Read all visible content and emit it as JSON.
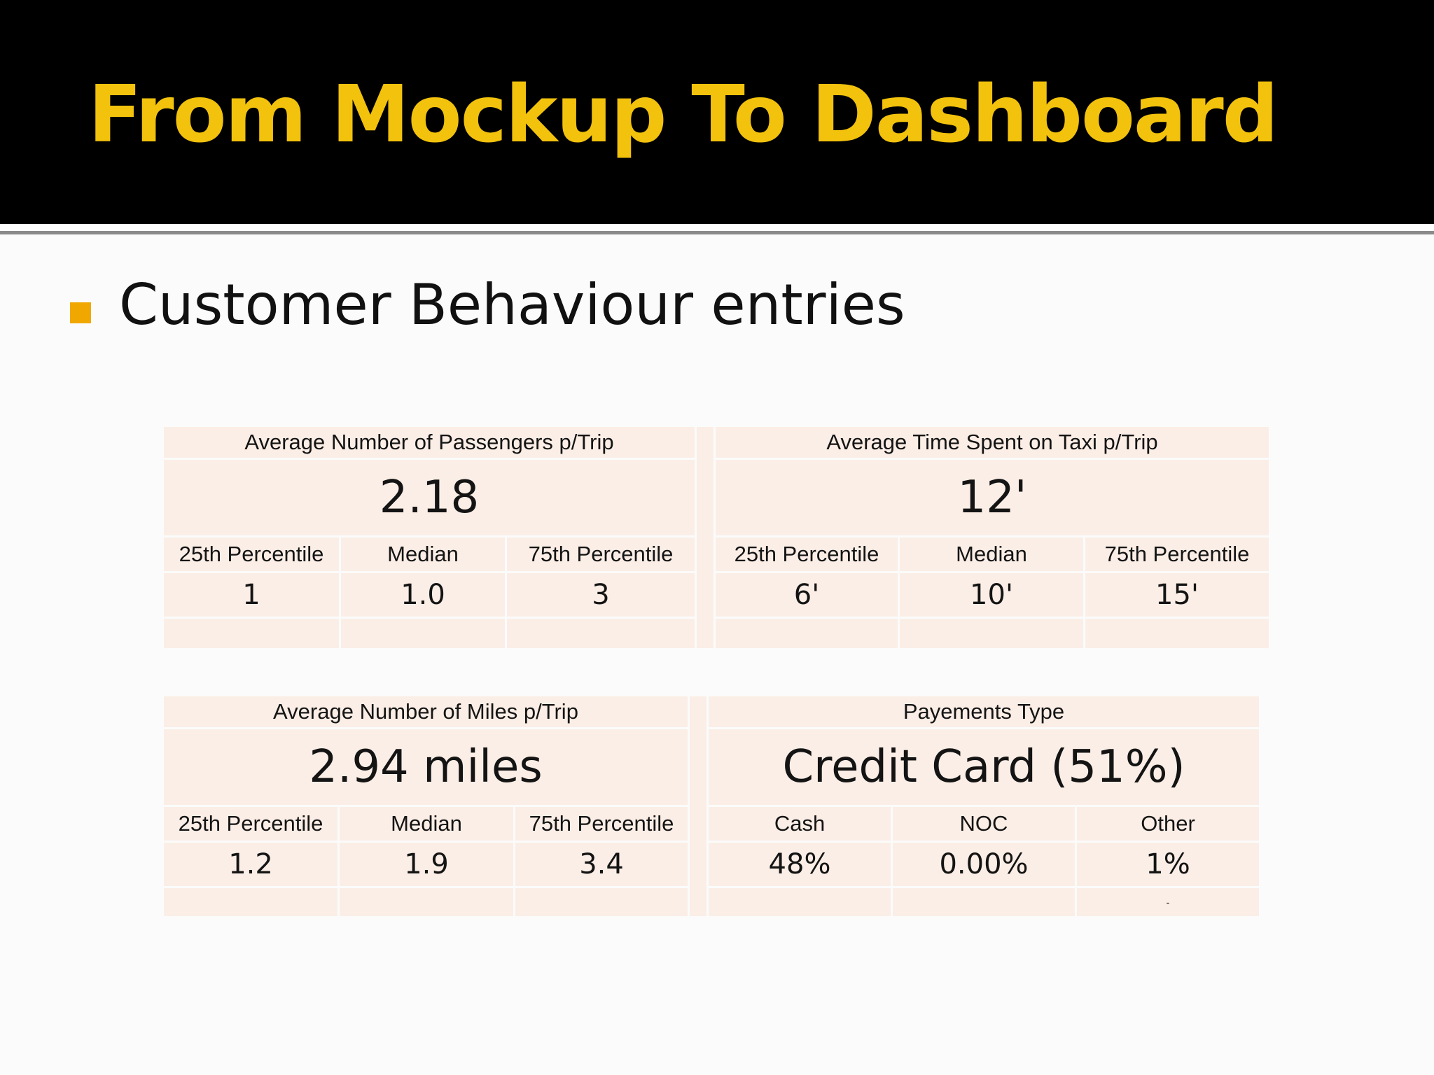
{
  "slide": {
    "title": "From Mockup To Dashboard",
    "bullet": "Customer Behaviour entries"
  },
  "colors": {
    "header_background": "#000000",
    "title_text": "#f2c20c",
    "bullet_marker": "#f0a800",
    "cell_background": "#fbeee6",
    "page_background": "#fbfbfb"
  },
  "passengers": {
    "title": "Average Number of Passengers p/Trip",
    "value": "2.18",
    "labels": [
      "25th Percentile",
      "Median",
      "75th Percentile"
    ],
    "values": [
      "1",
      "1.0",
      "3"
    ]
  },
  "time": {
    "title": "Average Time Spent on Taxi p/Trip",
    "value": "12'",
    "labels": [
      "25th Percentile",
      "Median",
      "75th Percentile"
    ],
    "values": [
      "6'",
      "10'",
      "15'"
    ]
  },
  "miles": {
    "title": "Average Number of Miles p/Trip",
    "value": "2.94 miles",
    "labels": [
      "25th Percentile",
      "Median",
      "75th Percentile"
    ],
    "values": [
      "1.2",
      "1.9",
      "3.4"
    ]
  },
  "payments": {
    "title": "Payements Type",
    "value": "Credit Card (51%)",
    "labels": [
      "Cash",
      "NOC",
      "Other"
    ],
    "values": [
      "48%",
      "0.00%",
      "1%"
    ],
    "footnote": "-"
  }
}
